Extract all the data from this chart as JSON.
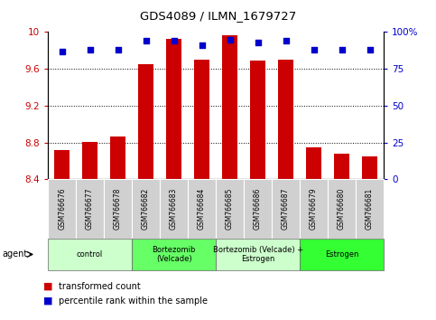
{
  "title": "GDS4089 / ILMN_1679727",
  "samples": [
    "GSM766676",
    "GSM766677",
    "GSM766678",
    "GSM766682",
    "GSM766683",
    "GSM766684",
    "GSM766685",
    "GSM766686",
    "GSM766687",
    "GSM766679",
    "GSM766680",
    "GSM766681"
  ],
  "bar_values": [
    8.72,
    8.81,
    8.86,
    9.65,
    9.93,
    9.7,
    9.96,
    9.69,
    9.7,
    8.75,
    8.68,
    8.65
  ],
  "percentile_values": [
    87,
    88,
    88,
    94,
    94,
    91,
    95,
    93,
    94,
    88,
    88,
    88
  ],
  "bar_bottom": 8.4,
  "ylim_left": [
    8.4,
    10.0
  ],
  "ylim_right": [
    0,
    100
  ],
  "yticks_left": [
    8.4,
    8.8,
    9.2,
    9.6,
    10.0
  ],
  "yticks_right": [
    0,
    25,
    50,
    75,
    100
  ],
  "ytick_labels_left": [
    "8.4",
    "8.8",
    "9.2",
    "9.6",
    "10"
  ],
  "ytick_labels_right": [
    "0",
    "25",
    "50",
    "75",
    "100%"
  ],
  "bar_color": "#cc0000",
  "dot_color": "#0000cc",
  "groups": [
    {
      "label": "control",
      "start": 0,
      "end": 3,
      "color": "#ccffcc"
    },
    {
      "label": "Bortezomib\n(Velcade)",
      "start": 3,
      "end": 6,
      "color": "#66ff66"
    },
    {
      "label": "Bortezomib (Velcade) +\nEstrogen",
      "start": 6,
      "end": 9,
      "color": "#ccffcc"
    },
    {
      "label": "Estrogen",
      "start": 9,
      "end": 12,
      "color": "#33ff33"
    }
  ],
  "agent_label": "agent",
  "legend_bar_label": "transformed count",
  "legend_dot_label": "percentile rank within the sample",
  "sample_bg": "#d0d0d0",
  "plot_bg": "#ffffff",
  "grid_dotted_at": [
    8.8,
    9.2,
    9.6
  ]
}
